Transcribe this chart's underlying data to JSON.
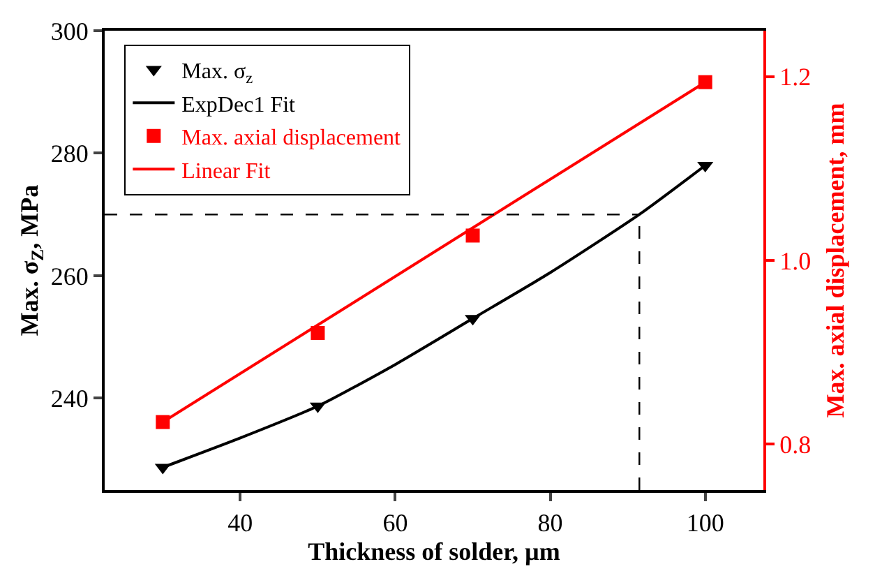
{
  "chart_data": {
    "type": "scatter",
    "xlabel": "Thickness of solder, µm",
    "ylabel": "Max. σ$_{Z}$, MPa",
    "y2label": "Max. axial displacement, mm",
    "xlim": [
      22.5,
      107.5
    ],
    "xticks": [
      40,
      60,
      80,
      100
    ],
    "ylim": [
      225,
      300
    ],
    "yticks": [
      240,
      260,
      280,
      300
    ],
    "y2lim": [
      0.75,
      1.25
    ],
    "y2ticks": [
      0.8,
      {
        "value": 1.0,
        "label": "1.0"
      },
      1.2
    ],
    "legend": "top left",
    "series": [
      {
        "name": "Max. σ$_{z}$",
        "marker": "triangle",
        "color": "#000000",
        "x": [
          30,
          50,
          70,
          100
        ],
        "values": [
          228.7,
          238.7,
          253.0,
          278.0
        ]
      },
      {
        "name": "ExpDec1 Fit",
        "type": "line",
        "marker": "none",
        "color": "#000000",
        "x": [
          30,
          40,
          50,
          60,
          70,
          80,
          91.5,
          100
        ],
        "values": [
          228.7,
          233.5,
          238.7,
          245.5,
          253.0,
          260.5,
          270.0,
          278.0
        ]
      },
      {
        "name": "Max. axial displacement",
        "marker": "square",
        "axis": "y2",
        "color": "#ff0000",
        "x": [
          30,
          50,
          70,
          100
        ],
        "values": [
          0.824,
          0.921,
          1.027,
          1.194
        ]
      },
      {
        "name": "Linear Fit",
        "type": "line",
        "marker": "none",
        "axis": "y2",
        "color": "#ff0000",
        "x": [
          30,
          100
        ],
        "values": [
          0.824,
          1.194
        ]
      }
    ],
    "ref_lines": [
      {
        "axis": "y",
        "value": 270,
        "color": "#000000",
        "line_style": "dashed"
      },
      {
        "axis": "x",
        "value": 91.5,
        "color": "#000000",
        "line_style": "dashed"
      }
    ]
  }
}
